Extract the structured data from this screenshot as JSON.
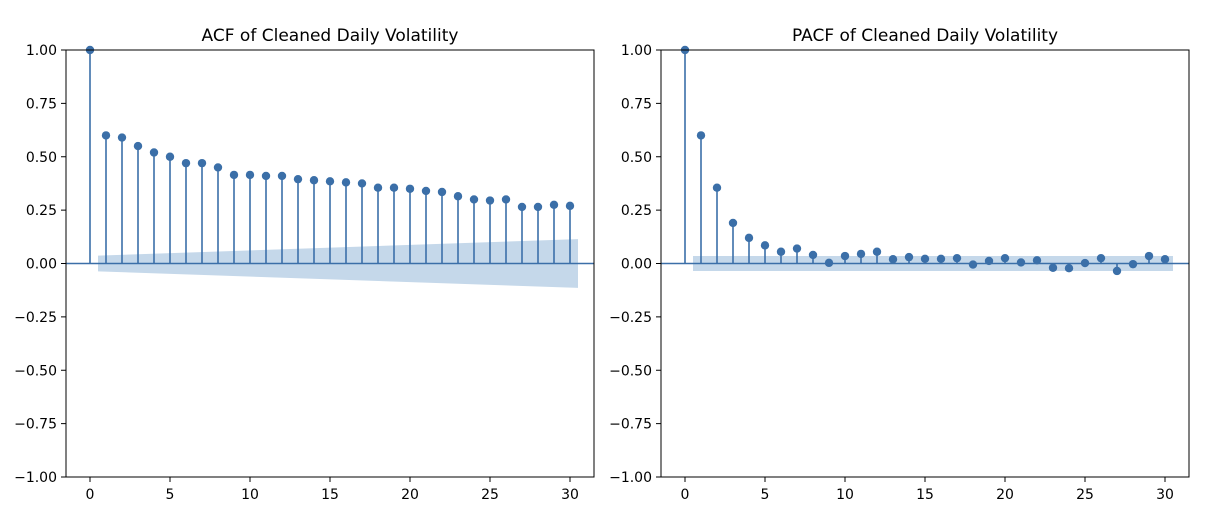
{
  "colors": {
    "series": "#3b6fa8",
    "band": "#c5d8ea",
    "axis": "#000000",
    "background": "#ffffff"
  },
  "chart_data": [
    {
      "type": "stem",
      "title": "ACF of Cleaned Daily Volatility",
      "xlabel": "",
      "ylabel": "",
      "xlim": [
        -1.5,
        31.5
      ],
      "ylim": [
        -1.0,
        1.0
      ],
      "xticks": [
        "0",
        "5",
        "10",
        "15",
        "20",
        "25",
        "30"
      ],
      "yticks": [
        "1.00",
        "0.75",
        "0.50",
        "0.25",
        "0.00",
        "−0.25",
        "−0.50",
        "−0.75",
        "−1.00"
      ],
      "lags": [
        0,
        1,
        2,
        3,
        4,
        5,
        6,
        7,
        8,
        9,
        10,
        11,
        12,
        13,
        14,
        15,
        16,
        17,
        18,
        19,
        20,
        21,
        22,
        23,
        24,
        25,
        26,
        27,
        28,
        29,
        30
      ],
      "values": [
        1.0,
        0.6,
        0.59,
        0.55,
        0.52,
        0.5,
        0.47,
        0.47,
        0.45,
        0.415,
        0.415,
        0.41,
        0.41,
        0.395,
        0.39,
        0.385,
        0.38,
        0.375,
        0.355,
        0.355,
        0.35,
        0.34,
        0.335,
        0.315,
        0.3,
        0.295,
        0.3,
        0.265,
        0.265,
        0.275,
        0.27
      ],
      "confidence_band": {
        "start_lag": 0.5,
        "end_lag": 30.5,
        "start_halfwidth": 0.037,
        "end_halfwidth": 0.114
      },
      "grid": false,
      "legend": "none"
    },
    {
      "type": "stem",
      "title": "PACF of Cleaned Daily Volatility",
      "xlabel": "",
      "ylabel": "",
      "xlim": [
        -1.5,
        31.5
      ],
      "ylim": [
        -1.0,
        1.0
      ],
      "xticks": [
        "0",
        "5",
        "10",
        "15",
        "20",
        "25",
        "30"
      ],
      "yticks": [
        "1.00",
        "0.75",
        "0.50",
        "0.25",
        "0.00",
        "−0.25",
        "−0.50",
        "−0.75",
        "−1.00"
      ],
      "lags": [
        0,
        1,
        2,
        3,
        4,
        5,
        6,
        7,
        8,
        9,
        10,
        11,
        12,
        13,
        14,
        15,
        16,
        17,
        18,
        19,
        20,
        21,
        22,
        23,
        24,
        25,
        26,
        27,
        28,
        29,
        30
      ],
      "values": [
        1.0,
        0.6,
        0.355,
        0.19,
        0.12,
        0.085,
        0.055,
        0.07,
        0.04,
        0.003,
        0.035,
        0.045,
        0.055,
        0.02,
        0.03,
        0.022,
        0.022,
        0.025,
        -0.005,
        0.012,
        0.025,
        0.005,
        0.015,
        -0.02,
        -0.022,
        0.002,
        0.025,
        -0.035,
        -0.003,
        0.035,
        0.02
      ],
      "confidence_band": {
        "start_lag": 0.5,
        "end_lag": 30.5,
        "start_halfwidth": 0.035,
        "end_halfwidth": 0.035
      },
      "grid": false,
      "legend": "none"
    }
  ]
}
